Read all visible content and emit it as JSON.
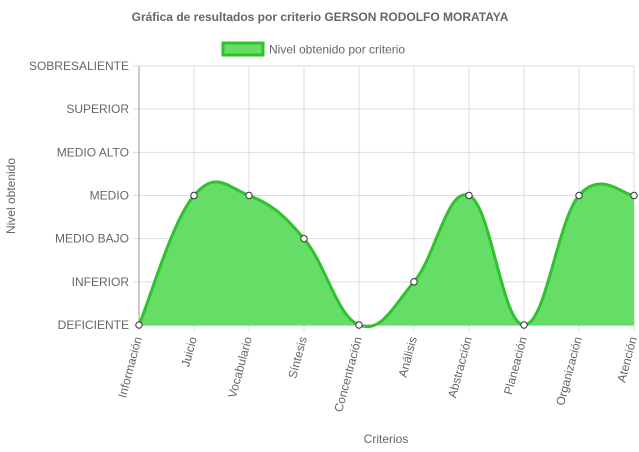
{
  "chart_data": {
    "type": "area",
    "title": "Gráfica de resultados por criterio GERSON RODOLFO MORATAYA",
    "xlabel": "Criterios",
    "ylabel": "Nivel obtenido",
    "categories": [
      "Información",
      "Juicio",
      "Vocabulario",
      "Síntesis",
      "Concentración",
      "Análisis",
      "Abstracción",
      "Planeación",
      "Organización",
      "Atención"
    ],
    "y_levels": [
      "DEFICIENTE",
      "INFERIOR",
      "MEDIO BAJO",
      "MEDIO",
      "MEDIO ALTO",
      "SUPERIOR",
      "SOBRESALIENTE"
    ],
    "ylim": [
      0,
      6
    ],
    "grid": true,
    "legend_position": "top",
    "series": [
      {
        "name": "Nivel obtenido por criterio",
        "values": [
          0,
          3,
          3,
          2,
          0,
          1,
          3,
          0,
          3,
          3
        ],
        "value_labels": [
          "DEFICIENTE",
          "MEDIO",
          "MEDIO",
          "MEDIO BAJO",
          "DEFICIENTE",
          "INFERIOR",
          "MEDIO",
          "DEFICIENTE",
          "MEDIO",
          "MEDIO"
        ]
      }
    ],
    "colors": {
      "fill": "#66dd66",
      "line": "#2fc22f",
      "point_fill": "#ffffff",
      "point_stroke": "#333333",
      "grid": "#dddddd",
      "text": "#666666"
    }
  }
}
